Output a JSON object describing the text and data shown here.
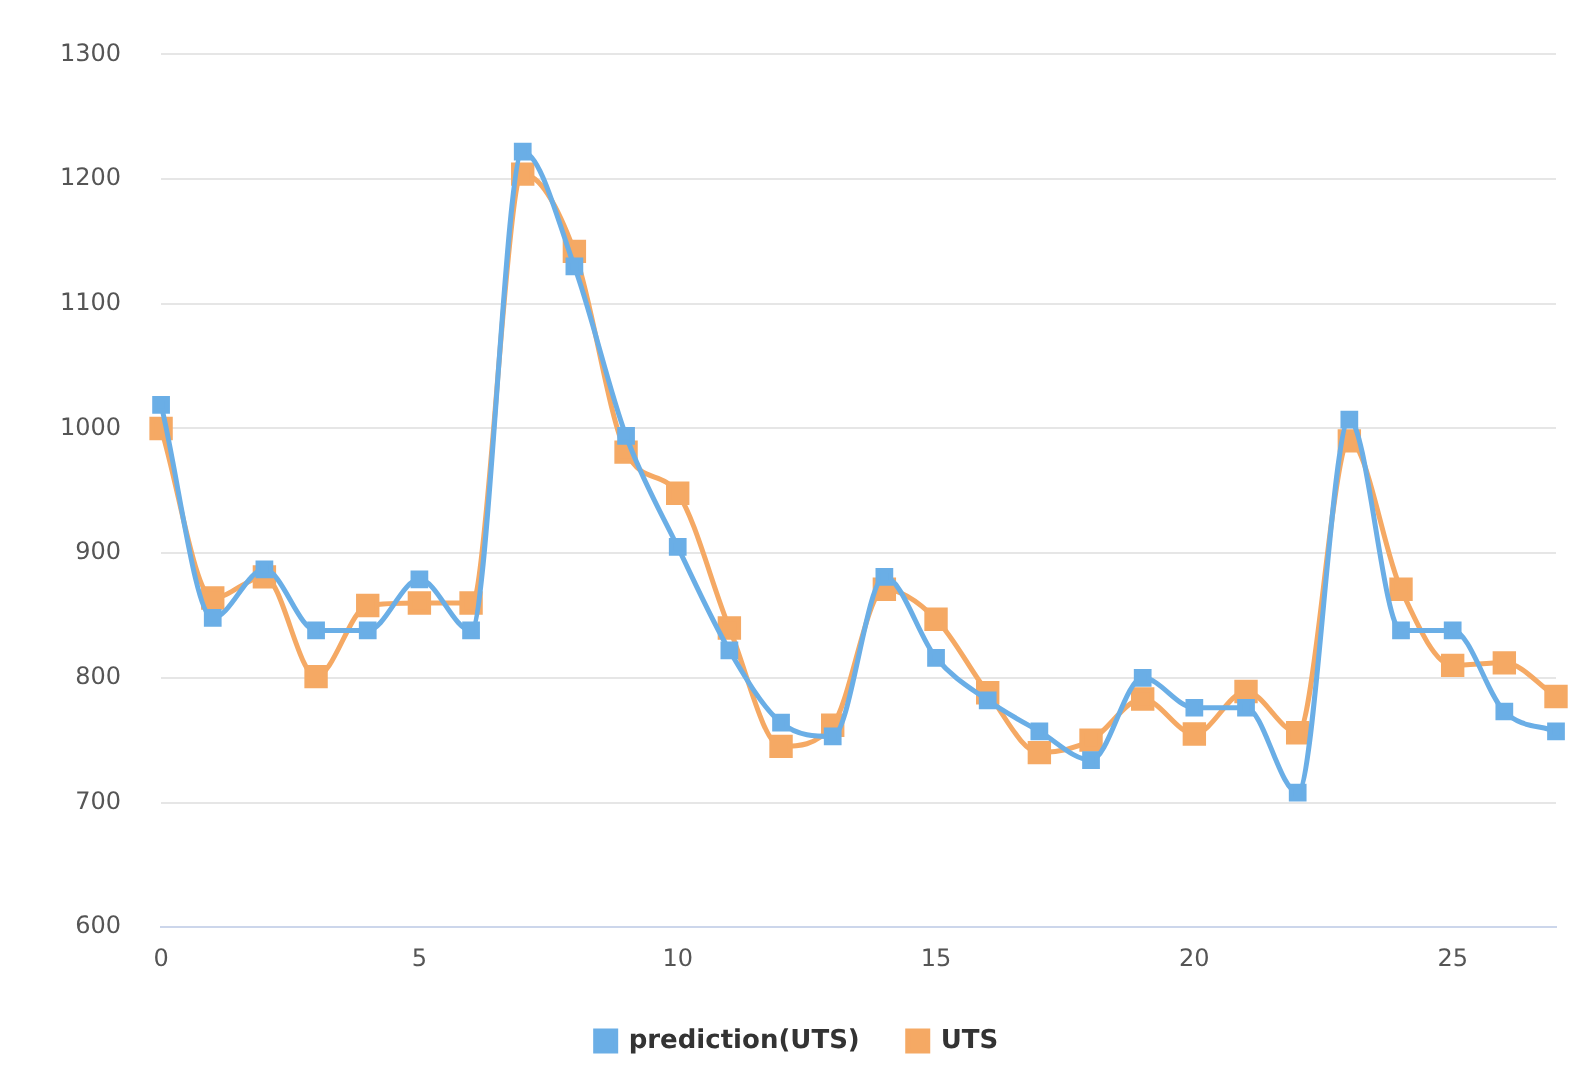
{
  "chart_data": {
    "type": "line",
    "x": [
      0,
      1,
      2,
      3,
      4,
      5,
      6,
      7,
      8,
      9,
      10,
      11,
      12,
      13,
      14,
      15,
      16,
      17,
      18,
      19,
      20,
      21,
      22,
      23,
      24,
      25,
      26,
      27
    ],
    "series": [
      {
        "name": "prediction(UTS)",
        "color": "#6aaee6",
        "values": [
          1019,
          848,
          887,
          838,
          838,
          879,
          838,
          1222,
          1130,
          994,
          905,
          822,
          764,
          753,
          881,
          816,
          782,
          757,
          734,
          800,
          776,
          776,
          708,
          1007,
          838,
          838,
          773,
          757
        ]
      },
      {
        "name": "UTS",
        "color": "#f5a964",
        "values": [
          1000,
          864,
          881,
          801,
          858,
          860,
          860,
          1204,
          1142,
          981,
          948,
          840,
          745,
          762,
          871,
          847,
          788,
          740,
          750,
          783,
          755,
          789,
          756,
          990,
          871,
          810,
          812,
          785
        ]
      }
    ],
    "xlim": [
      0,
      27
    ],
    "xticks": [
      0,
      5,
      10,
      15,
      20,
      25
    ],
    "ylim": [
      600,
      1300
    ],
    "yticks": [
      600,
      700,
      800,
      900,
      1000,
      1100,
      1200,
      1300
    ],
    "grid": "y",
    "legend": "bottom",
    "marker": "square",
    "line_style": "solid"
  }
}
